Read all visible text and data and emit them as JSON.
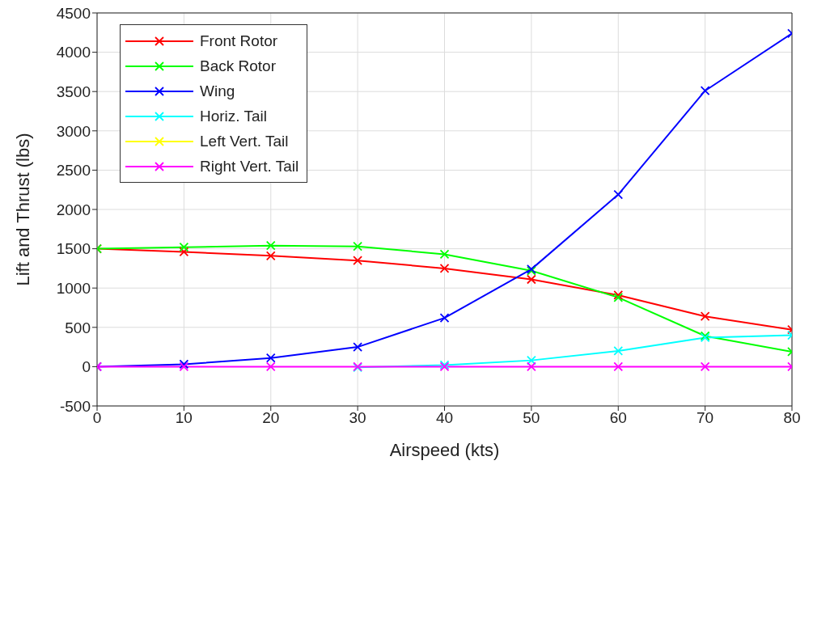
{
  "chart_data": {
    "type": "line",
    "xlabel": "Airspeed (kts)",
    "ylabel": "Lift and Thrust (lbs)",
    "x": [
      0,
      10,
      20,
      30,
      40,
      50,
      60,
      70,
      80
    ],
    "xlim": [
      0,
      80
    ],
    "xticks": [
      0,
      10,
      20,
      30,
      40,
      50,
      60,
      70,
      80
    ],
    "ylim": [
      -500,
      4500
    ],
    "yticks": [
      -500,
      0,
      500,
      1000,
      1500,
      2000,
      2500,
      3000,
      3500,
      4000,
      4500
    ],
    "grid": true,
    "legend": "top left",
    "marker": "cross",
    "line_style": "solid",
    "series": [
      {
        "name": "Front Rotor",
        "color": "#ff0000",
        "values": [
          1500,
          1460,
          1410,
          1350,
          1250,
          1110,
          910,
          640,
          470
        ]
      },
      {
        "name": "Back Rotor",
        "color": "#00ff00",
        "values": [
          1500,
          1520,
          1540,
          1530,
          1430,
          1220,
          880,
          390,
          190
        ]
      },
      {
        "name": "Wing",
        "color": "#0000ff",
        "values": [
          0,
          30,
          110,
          250,
          620,
          1240,
          2190,
          3510,
          4240
        ]
      },
      {
        "name": "Horiz. Tail",
        "color": "#00ffff",
        "values": [
          null,
          null,
          null,
          -10,
          20,
          80,
          200,
          370,
          400
        ]
      },
      {
        "name": "Left Vert. Tail",
        "color": "#ffff00",
        "values": [
          null,
          null,
          null,
          null,
          null,
          null,
          null,
          null,
          null
        ]
      },
      {
        "name": "Right Vert. Tail",
        "color": "#ff00ff",
        "values": [
          0,
          0,
          0,
          0,
          0,
          0,
          0,
          0,
          0
        ]
      }
    ]
  }
}
